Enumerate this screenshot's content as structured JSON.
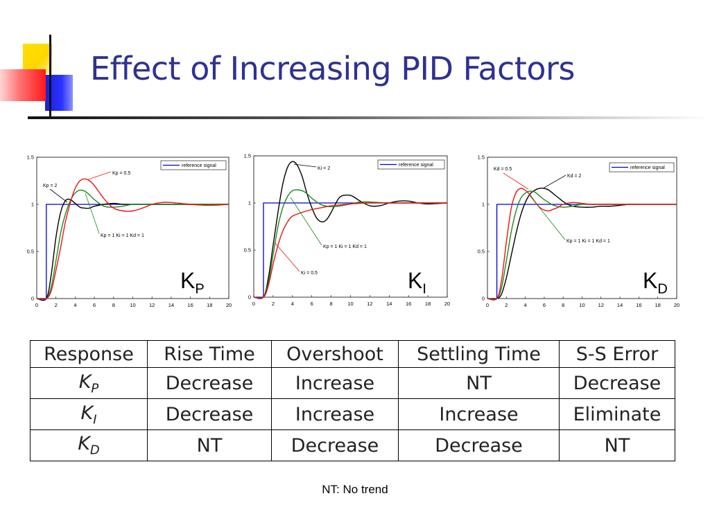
{
  "title": "Effect of Increasing PID Factors",
  "colors": {
    "title": "#2e3192",
    "reference": "#0000cc",
    "red": "#ee1111",
    "green": "#1a8a1a",
    "black": "#000000"
  },
  "chart_data": [
    {
      "type": "line",
      "panel_label": {
        "main": "K",
        "sub": "P"
      },
      "xlim": [
        0,
        20
      ],
      "ylim": [
        0,
        1.5
      ],
      "xticks": [
        "0",
        "2",
        "4",
        "6",
        "8",
        "10",
        "12",
        "14",
        "16",
        "18",
        "20"
      ],
      "yticks": [
        "0",
        "0.5",
        "1",
        "1.5"
      ],
      "legend": {
        "label": "reference signal",
        "placement": "top-right"
      },
      "series": [
        {
          "color": "blue",
          "x": [
            0,
            1,
            1,
            20
          ],
          "y": [
            0,
            0,
            1,
            1
          ]
        },
        {
          "color": "black",
          "x": [
            0,
            1,
            1.5,
            2,
            2.5,
            3,
            3.5,
            4,
            4.5,
            5,
            5.5,
            6,
            7,
            8,
            9,
            10,
            12,
            14,
            16,
            20
          ],
          "y": [
            0,
            0,
            0.25,
            0.65,
            0.92,
            1.04,
            1.05,
            1.01,
            0.97,
            0.96,
            0.96,
            0.98,
            1.0,
            1.01,
            1.0,
            1.0,
            1.0,
            1.0,
            1.0,
            1.0
          ]
        },
        {
          "color": "green",
          "x": [
            0,
            1,
            1.5,
            2,
            2.5,
            3,
            3.5,
            4,
            4.5,
            5,
            5.5,
            6,
            7,
            8,
            9,
            10,
            12,
            14,
            16,
            20
          ],
          "y": [
            0,
            0,
            0.12,
            0.4,
            0.7,
            0.9,
            1.04,
            1.12,
            1.15,
            1.14,
            1.1,
            1.05,
            0.98,
            0.97,
            0.98,
            1.0,
            1.0,
            1.0,
            1.0,
            1.0
          ]
        },
        {
          "color": "red",
          "x": [
            0,
            1,
            1.5,
            2,
            2.5,
            3,
            3.5,
            4,
            4.5,
            5,
            5.5,
            6,
            7,
            8,
            9,
            10,
            11,
            12,
            13,
            14,
            16,
            18,
            20
          ],
          "y": [
            0,
            0,
            0.08,
            0.3,
            0.55,
            0.82,
            1.02,
            1.17,
            1.25,
            1.27,
            1.25,
            1.2,
            1.06,
            0.96,
            0.93,
            0.93,
            0.96,
            1.0,
            1.02,
            1.02,
            1.0,
            0.99,
            1.0
          ]
        }
      ],
      "annotations": [
        {
          "text": "Kp = 0.5",
          "target": "red"
        },
        {
          "text": "Kp = 2",
          "target": "black"
        },
        {
          "text": "Kp = 1  Ki = 1  Kd = 1",
          "target": "green"
        }
      ]
    },
    {
      "type": "line",
      "panel_label": {
        "main": "K",
        "sub": "I"
      },
      "xlim": [
        0,
        20
      ],
      "ylim": [
        0,
        1.5
      ],
      "xticks": [
        "0",
        "2",
        "4",
        "6",
        "8",
        "10",
        "12",
        "14",
        "16",
        "18",
        "20"
      ],
      "yticks": [
        "0",
        "0.5",
        "1",
        "1.5"
      ],
      "legend": {
        "label": "reference signal",
        "placement": "top-right"
      },
      "series": [
        {
          "color": "blue",
          "x": [
            0,
            1,
            1,
            20
          ],
          "y": [
            0,
            0,
            1,
            1
          ]
        },
        {
          "color": "black",
          "x": [
            0,
            1,
            1.5,
            2,
            2.5,
            3,
            3.5,
            4,
            4.5,
            5,
            5.5,
            6,
            6.5,
            7,
            7.5,
            8,
            8.5,
            9,
            10,
            11,
            12,
            13,
            14,
            15,
            16,
            17,
            18,
            20
          ],
          "y": [
            0,
            0,
            0.2,
            0.55,
            0.9,
            1.2,
            1.38,
            1.44,
            1.4,
            1.28,
            1.1,
            0.95,
            0.84,
            0.8,
            0.82,
            0.9,
            1.0,
            1.07,
            1.08,
            1.02,
            0.97,
            0.97,
            1.0,
            1.02,
            1.02,
            1.0,
            0.99,
            1.0
          ]
        },
        {
          "color": "green",
          "x": [
            0,
            1,
            1.5,
            2,
            2.5,
            3,
            3.5,
            4,
            4.5,
            5,
            5.5,
            6,
            7,
            8,
            9,
            10,
            11,
            12,
            14,
            16,
            20
          ],
          "y": [
            0,
            0,
            0.15,
            0.45,
            0.75,
            0.95,
            1.07,
            1.13,
            1.14,
            1.13,
            1.1,
            1.05,
            0.98,
            0.96,
            0.97,
            0.99,
            1.01,
            1.01,
            1.0,
            1.0,
            1.0
          ]
        },
        {
          "color": "red",
          "x": [
            0,
            1,
            1.5,
            2,
            2.5,
            3,
            3.5,
            4,
            5,
            6,
            7,
            8,
            9,
            10,
            12,
            14,
            16,
            18,
            20
          ],
          "y": [
            0,
            0,
            0.12,
            0.35,
            0.55,
            0.7,
            0.8,
            0.86,
            0.9,
            0.93,
            0.95,
            0.97,
            0.98,
            0.99,
            1.0,
            1.0,
            1.0,
            1.0,
            1.0
          ]
        }
      ],
      "annotations": [
        {
          "text": "Ki = 2",
          "target": "black"
        },
        {
          "text": "Kp = 1  Ki = 1  Kd = 1",
          "target": "green"
        },
        {
          "text": "Ki = 0.5",
          "target": "red"
        }
      ]
    },
    {
      "type": "line",
      "panel_label": {
        "main": "K",
        "sub": "D"
      },
      "xlim": [
        0,
        20
      ],
      "ylim": [
        0,
        1.5
      ],
      "xticks": [
        "0",
        "2",
        "4",
        "6",
        "8",
        "10",
        "12",
        "14",
        "16",
        "18",
        "20"
      ],
      "yticks": [
        "0",
        "0.5",
        "1",
        "1.5"
      ],
      "legend": {
        "label": "reference signal",
        "placement": "top-right"
      },
      "series": [
        {
          "color": "blue",
          "x": [
            0,
            1,
            1,
            20
          ],
          "y": [
            0,
            0,
            1,
            1
          ]
        },
        {
          "color": "black",
          "x": [
            0,
            1,
            1.5,
            2,
            2.5,
            3,
            3.5,
            4,
            4.5,
            5,
            5.5,
            6,
            6.5,
            7,
            7.5,
            8,
            8.5,
            9,
            10,
            11,
            12,
            13,
            14,
            15,
            16
          ],
          "y": [
            0,
            0,
            0.05,
            0.22,
            0.45,
            0.68,
            0.88,
            1.02,
            1.11,
            1.15,
            1.17,
            1.17,
            1.15,
            1.11,
            1.07,
            1.03,
            1.0,
            0.98,
            0.97,
            0.97,
            0.98,
            0.98,
            0.99,
            1.0,
            1.0
          ]
        },
        {
          "color": "green",
          "x": [
            0,
            1,
            1.5,
            2,
            2.5,
            3,
            3.5,
            4,
            4.5,
            5,
            5.5,
            6,
            7,
            8,
            9,
            10,
            11,
            12,
            14,
            16,
            20
          ],
          "y": [
            0,
            0,
            0.12,
            0.4,
            0.7,
            0.92,
            1.06,
            1.12,
            1.14,
            1.13,
            1.09,
            1.05,
            0.99,
            0.97,
            0.98,
            1.0,
            1.0,
            1.0,
            1.0,
            1.0,
            1.0
          ]
        },
        {
          "color": "red",
          "x": [
            0,
            1,
            1.5,
            2,
            2.5,
            3,
            3.5,
            4,
            4.5,
            5,
            5.5,
            6,
            6.5,
            7,
            7.5,
            8,
            9,
            10,
            11,
            12,
            14,
            16,
            20
          ],
          "y": [
            0,
            0,
            0.2,
            0.6,
            0.95,
            1.12,
            1.17,
            1.15,
            1.1,
            1.03,
            0.97,
            0.94,
            0.93,
            0.95,
            0.97,
            1.0,
            1.02,
            1.01,
            1.0,
            1.0,
            1.0,
            1.0,
            1.0
          ]
        }
      ],
      "annotations": [
        {
          "text": "Kd = 0.5",
          "target": "red"
        },
        {
          "text": "Kd = 2",
          "target": "black"
        },
        {
          "text": "Kp = 1  Ki = 1  Kd = 1",
          "target": "green"
        }
      ]
    }
  ],
  "table": {
    "headers": [
      "Response",
      "Rise Time",
      "Overshoot",
      "Settling Time",
      "S-S Error"
    ],
    "rows": [
      {
        "k": "K",
        "sub": "P",
        "cells": [
          "Decrease",
          "Increase",
          "NT",
          "Decrease"
        ]
      },
      {
        "k": "K",
        "sub": "I",
        "cells": [
          "Decrease",
          "Increase",
          "Increase",
          "Eliminate"
        ]
      },
      {
        "k": "K",
        "sub": "D",
        "cells": [
          "NT",
          "Decrease",
          "Decrease",
          "NT"
        ]
      }
    ]
  },
  "footnote": "NT: No trend"
}
